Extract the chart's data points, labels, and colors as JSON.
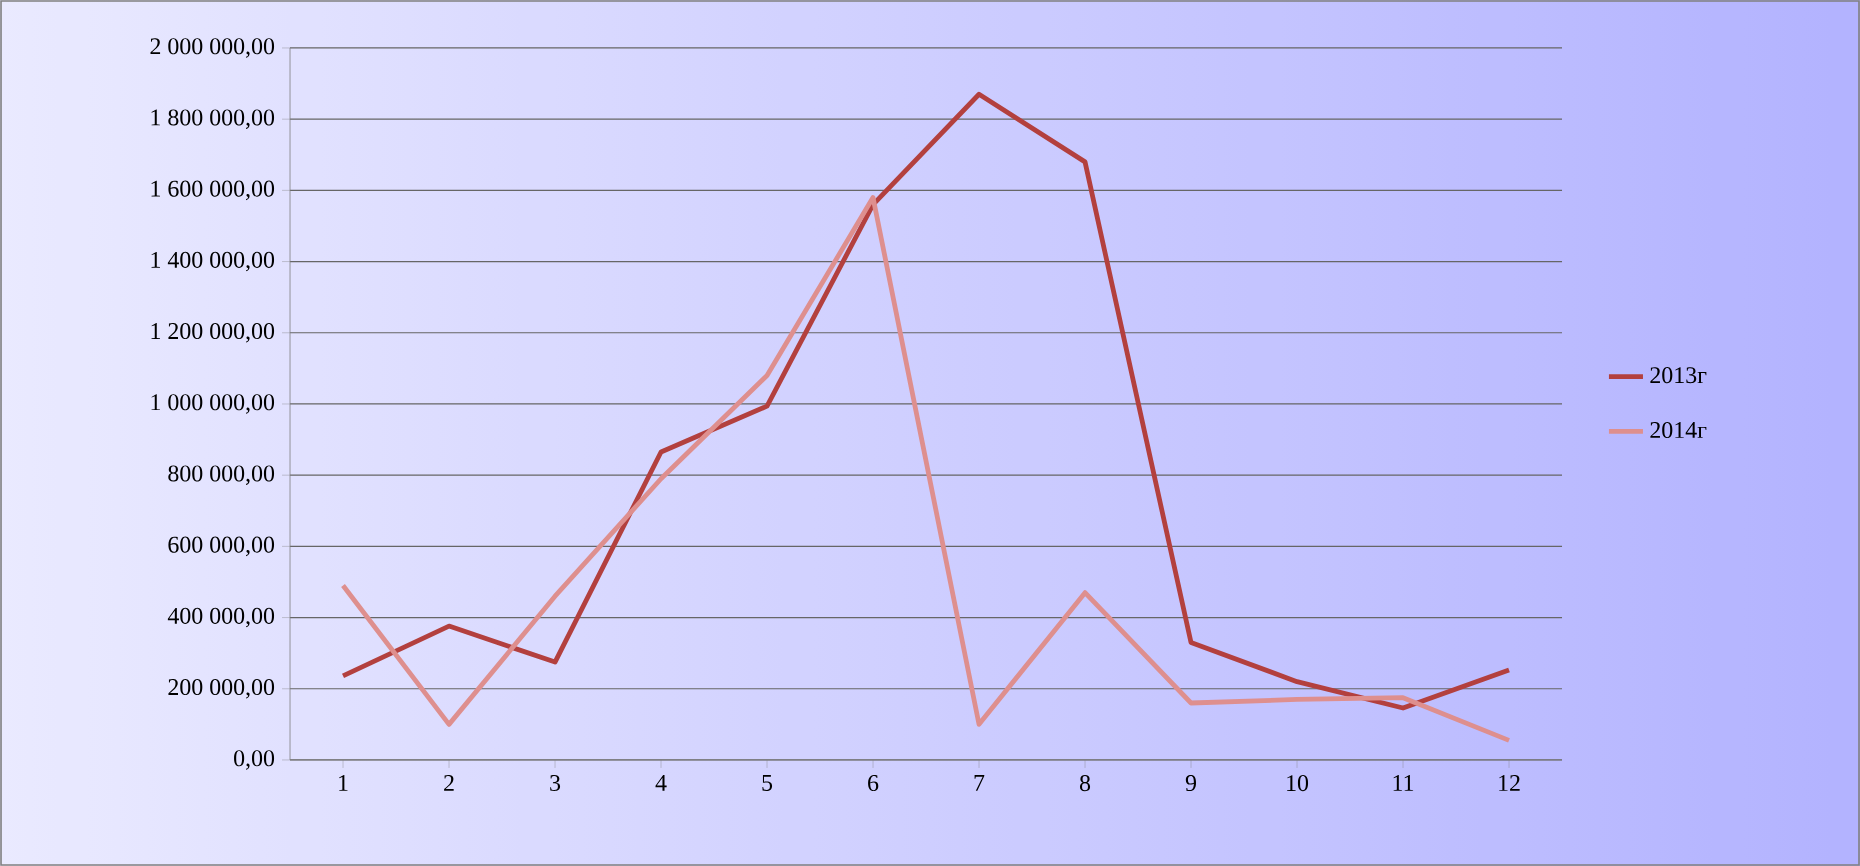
{
  "chart_data": {
    "type": "line",
    "categories": [
      "1",
      "2",
      "3",
      "4",
      "5",
      "6",
      "7",
      "8",
      "9",
      "10",
      "11",
      "12"
    ],
    "series": [
      {
        "name": "2013г",
        "color": "#b3403e",
        "values": [
          236000,
          376000,
          275000,
          865000,
          994000,
          1560000,
          1870000,
          1680000,
          330000,
          220000,
          146000,
          253000
        ]
      },
      {
        "name": "2014г",
        "color": "#de8f8e",
        "values": [
          490000,
          100000,
          460000,
          790000,
          1080000,
          1580000,
          100000,
          470000,
          160000,
          170000,
          175000,
          55000
        ]
      }
    ],
    "ylim": [
      0,
      2000000
    ],
    "yticks": [
      {
        "value": 0,
        "label": "0,00"
      },
      {
        "value": 200000,
        "label": "200 000,00"
      },
      {
        "value": 400000,
        "label": "400 000,00"
      },
      {
        "value": 600000,
        "label": "600 000,00"
      },
      {
        "value": 800000,
        "label": "800 000,00"
      },
      {
        "value": 1000000,
        "label": "1 000 000,00"
      },
      {
        "value": 1200000,
        "label": "1 200 000,00"
      },
      {
        "value": 1400000,
        "label": "1 400 000,00"
      },
      {
        "value": 1600000,
        "label": "1 600 000,00"
      },
      {
        "value": 1800000,
        "label": "1 800 000,00"
      },
      {
        "value": 2000000,
        "label": "2 000 000,00"
      }
    ],
    "grid": "y",
    "legend": "right",
    "marker": "none",
    "line_style": "solid"
  }
}
